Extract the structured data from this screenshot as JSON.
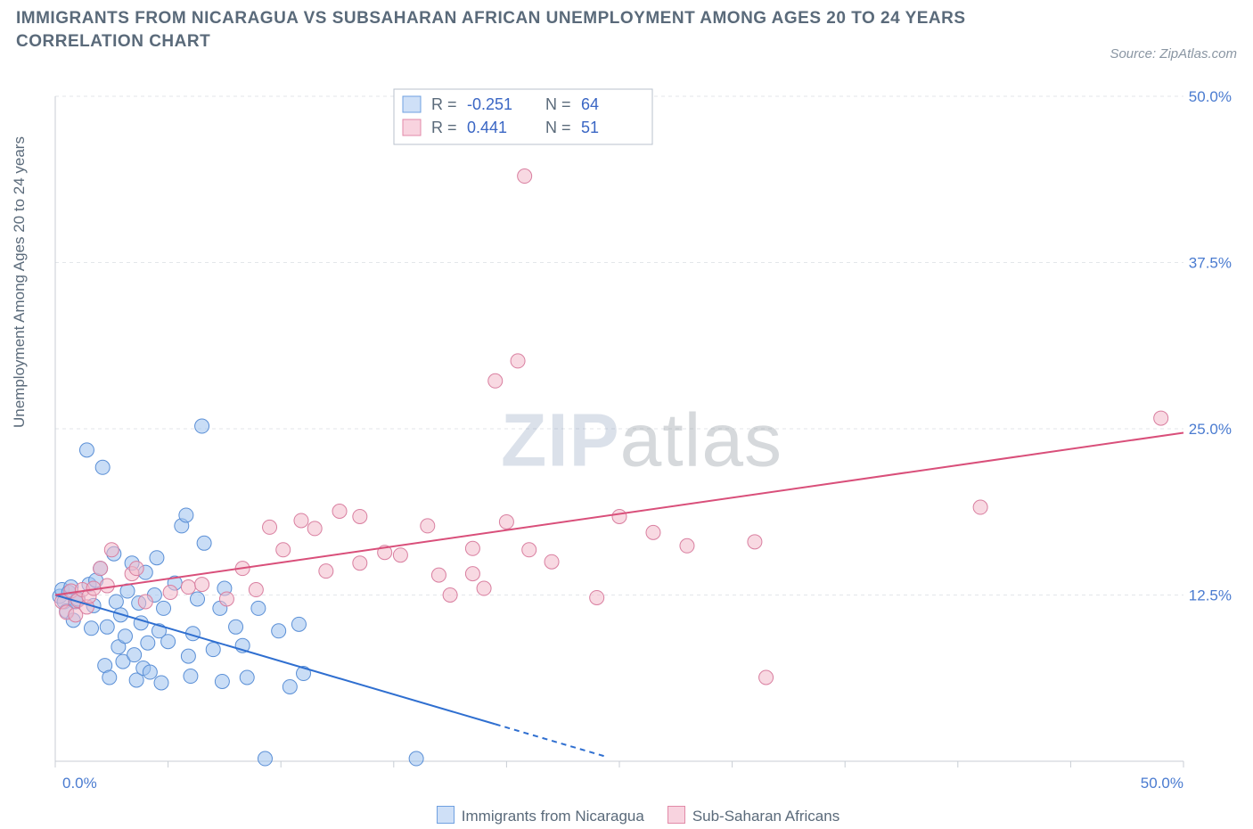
{
  "title": "IMMIGRANTS FROM NICARAGUA VS SUBSAHARAN AFRICAN UNEMPLOYMENT AMONG AGES 20 TO 24 YEARS CORRELATION CHART",
  "source": "Source: ZipAtlas.com",
  "ylabel": "Unemployment Among Ages 20 to 24 years",
  "watermark_bold": "ZIP",
  "watermark_light": "atlas",
  "legend_top": {
    "rows": [
      {
        "r_label": "R =",
        "r_value": "-0.251",
        "n_label": "N =",
        "n_value": "64",
        "swatch_fill": "#cfe0f7",
        "swatch_stroke": "#6fa0e0"
      },
      {
        "r_label": "R =",
        "r_value": "0.441",
        "n_label": "N =",
        "n_value": "51",
        "swatch_fill": "#f8d3df",
        "swatch_stroke": "#e28aa8"
      }
    ],
    "text_color_label": "#5a6a7a",
    "text_color_value": "#3a66c4"
  },
  "footer_legend": {
    "items": [
      {
        "label": "Immigrants from Nicaragua",
        "fill": "#cfe0f7",
        "stroke": "#6fa0e0"
      },
      {
        "label": "Sub-Saharan Africans",
        "fill": "#f8d3df",
        "stroke": "#e28aa8"
      }
    ]
  },
  "chart": {
    "type": "scatter",
    "xlim": [
      0,
      50
    ],
    "ylim": [
      0,
      50
    ],
    "x_ticks": [
      0,
      5,
      10,
      15,
      20,
      25,
      30,
      35,
      40,
      45,
      50
    ],
    "y_gridlines": [
      12.5,
      25.0,
      37.5,
      50.0
    ],
    "x_tick_labels": {
      "0": "0.0%",
      "50": "50.0%"
    },
    "y_tick_labels": [
      "12.5%",
      "25.0%",
      "37.5%",
      "50.0%"
    ],
    "grid_color": "#e3e6ea",
    "axis_color": "#c8ced4",
    "background_color": "#ffffff",
    "marker_radius": 8,
    "marker_fill_opacity": 0.55,
    "series": [
      {
        "name": "Immigrants from Nicaragua",
        "fill": "#9dc1ef",
        "stroke": "#5a8fd6",
        "trend": {
          "x1": 0,
          "y1": 12.5,
          "x2": 24.5,
          "y2": 0.3,
          "dash_from_x": 19.5,
          "color": "#2f6fd0",
          "width": 2
        },
        "points": [
          [
            0.2,
            12.4
          ],
          [
            0.3,
            12.9
          ],
          [
            0.4,
            12.0
          ],
          [
            0.5,
            11.3
          ],
          [
            0.6,
            12.7
          ],
          [
            0.7,
            13.1
          ],
          [
            0.8,
            10.6
          ],
          [
            0.9,
            12.0
          ],
          [
            1.0,
            12.2
          ],
          [
            1.4,
            23.4
          ],
          [
            1.5,
            13.3
          ],
          [
            1.6,
            10.0
          ],
          [
            1.7,
            11.7
          ],
          [
            1.8,
            13.6
          ],
          [
            2.0,
            14.5
          ],
          [
            2.1,
            22.1
          ],
          [
            2.2,
            7.2
          ],
          [
            2.3,
            10.1
          ],
          [
            2.4,
            6.3
          ],
          [
            2.6,
            15.6
          ],
          [
            2.7,
            12.0
          ],
          [
            2.8,
            8.6
          ],
          [
            2.9,
            11.0
          ],
          [
            3.0,
            7.5
          ],
          [
            3.1,
            9.4
          ],
          [
            3.2,
            12.8
          ],
          [
            3.4,
            14.9
          ],
          [
            3.5,
            8.0
          ],
          [
            3.6,
            6.1
          ],
          [
            3.7,
            11.9
          ],
          [
            3.8,
            10.4
          ],
          [
            3.9,
            7.0
          ],
          [
            4.0,
            14.2
          ],
          [
            4.1,
            8.9
          ],
          [
            4.2,
            6.7
          ],
          [
            4.4,
            12.5
          ],
          [
            4.5,
            15.3
          ],
          [
            4.6,
            9.8
          ],
          [
            4.7,
            5.9
          ],
          [
            4.8,
            11.5
          ],
          [
            5.0,
            9.0
          ],
          [
            5.6,
            17.7
          ],
          [
            5.8,
            18.5
          ],
          [
            5.3,
            13.4
          ],
          [
            5.9,
            7.9
          ],
          [
            6.0,
            6.4
          ],
          [
            6.5,
            25.2
          ],
          [
            6.6,
            16.4
          ],
          [
            6.1,
            9.6
          ],
          [
            6.3,
            12.2
          ],
          [
            7.0,
            8.4
          ],
          [
            7.3,
            11.5
          ],
          [
            7.4,
            6.0
          ],
          [
            7.5,
            13.0
          ],
          [
            8.0,
            10.1
          ],
          [
            8.3,
            8.7
          ],
          [
            8.5,
            6.3
          ],
          [
            9.0,
            11.5
          ],
          [
            9.3,
            0.2
          ],
          [
            9.9,
            9.8
          ],
          [
            10.4,
            5.6
          ],
          [
            10.8,
            10.3
          ],
          [
            11.0,
            6.6
          ],
          [
            16.0,
            0.2
          ]
        ]
      },
      {
        "name": "Sub-Saharan Africans",
        "fill": "#f3b9cb",
        "stroke": "#d97fa0",
        "trend": {
          "x1": 0,
          "y1": 12.5,
          "x2": 50,
          "y2": 24.7,
          "color": "#d94f7a",
          "width": 2
        },
        "points": [
          [
            0.3,
            12.0
          ],
          [
            0.5,
            11.2
          ],
          [
            0.7,
            12.8
          ],
          [
            0.9,
            11.0
          ],
          [
            1.0,
            12.1
          ],
          [
            1.2,
            12.9
          ],
          [
            1.4,
            11.6
          ],
          [
            1.5,
            12.4
          ],
          [
            1.7,
            13.0
          ],
          [
            2.0,
            14.5
          ],
          [
            2.3,
            13.2
          ],
          [
            2.5,
            15.9
          ],
          [
            3.4,
            14.1
          ],
          [
            3.6,
            14.5
          ],
          [
            4.0,
            12.0
          ],
          [
            5.1,
            12.7
          ],
          [
            5.9,
            13.1
          ],
          [
            6.5,
            13.3
          ],
          [
            7.6,
            12.2
          ],
          [
            8.3,
            14.5
          ],
          [
            8.9,
            12.9
          ],
          [
            9.5,
            17.6
          ],
          [
            10.1,
            15.9
          ],
          [
            10.9,
            18.1
          ],
          [
            11.5,
            17.5
          ],
          [
            12.0,
            14.3
          ],
          [
            12.6,
            18.8
          ],
          [
            13.5,
            14.9
          ],
          [
            13.5,
            18.4
          ],
          [
            14.6,
            15.7
          ],
          [
            15.3,
            15.5
          ],
          [
            16.5,
            17.7
          ],
          [
            17.0,
            14.0
          ],
          [
            17.5,
            12.5
          ],
          [
            18.5,
            16.0
          ],
          [
            18.5,
            14.1
          ],
          [
            19.0,
            13.0
          ],
          [
            19.5,
            28.6
          ],
          [
            20.0,
            18.0
          ],
          [
            20.5,
            30.1
          ],
          [
            20.8,
            44.0
          ],
          [
            21.0,
            15.9
          ],
          [
            22.0,
            15.0
          ],
          [
            24.0,
            12.3
          ],
          [
            25.0,
            18.4
          ],
          [
            26.5,
            17.2
          ],
          [
            28.0,
            16.2
          ],
          [
            31.0,
            16.5
          ],
          [
            31.5,
            6.3
          ],
          [
            41.0,
            19.1
          ],
          [
            49.0,
            25.8
          ]
        ]
      }
    ]
  }
}
